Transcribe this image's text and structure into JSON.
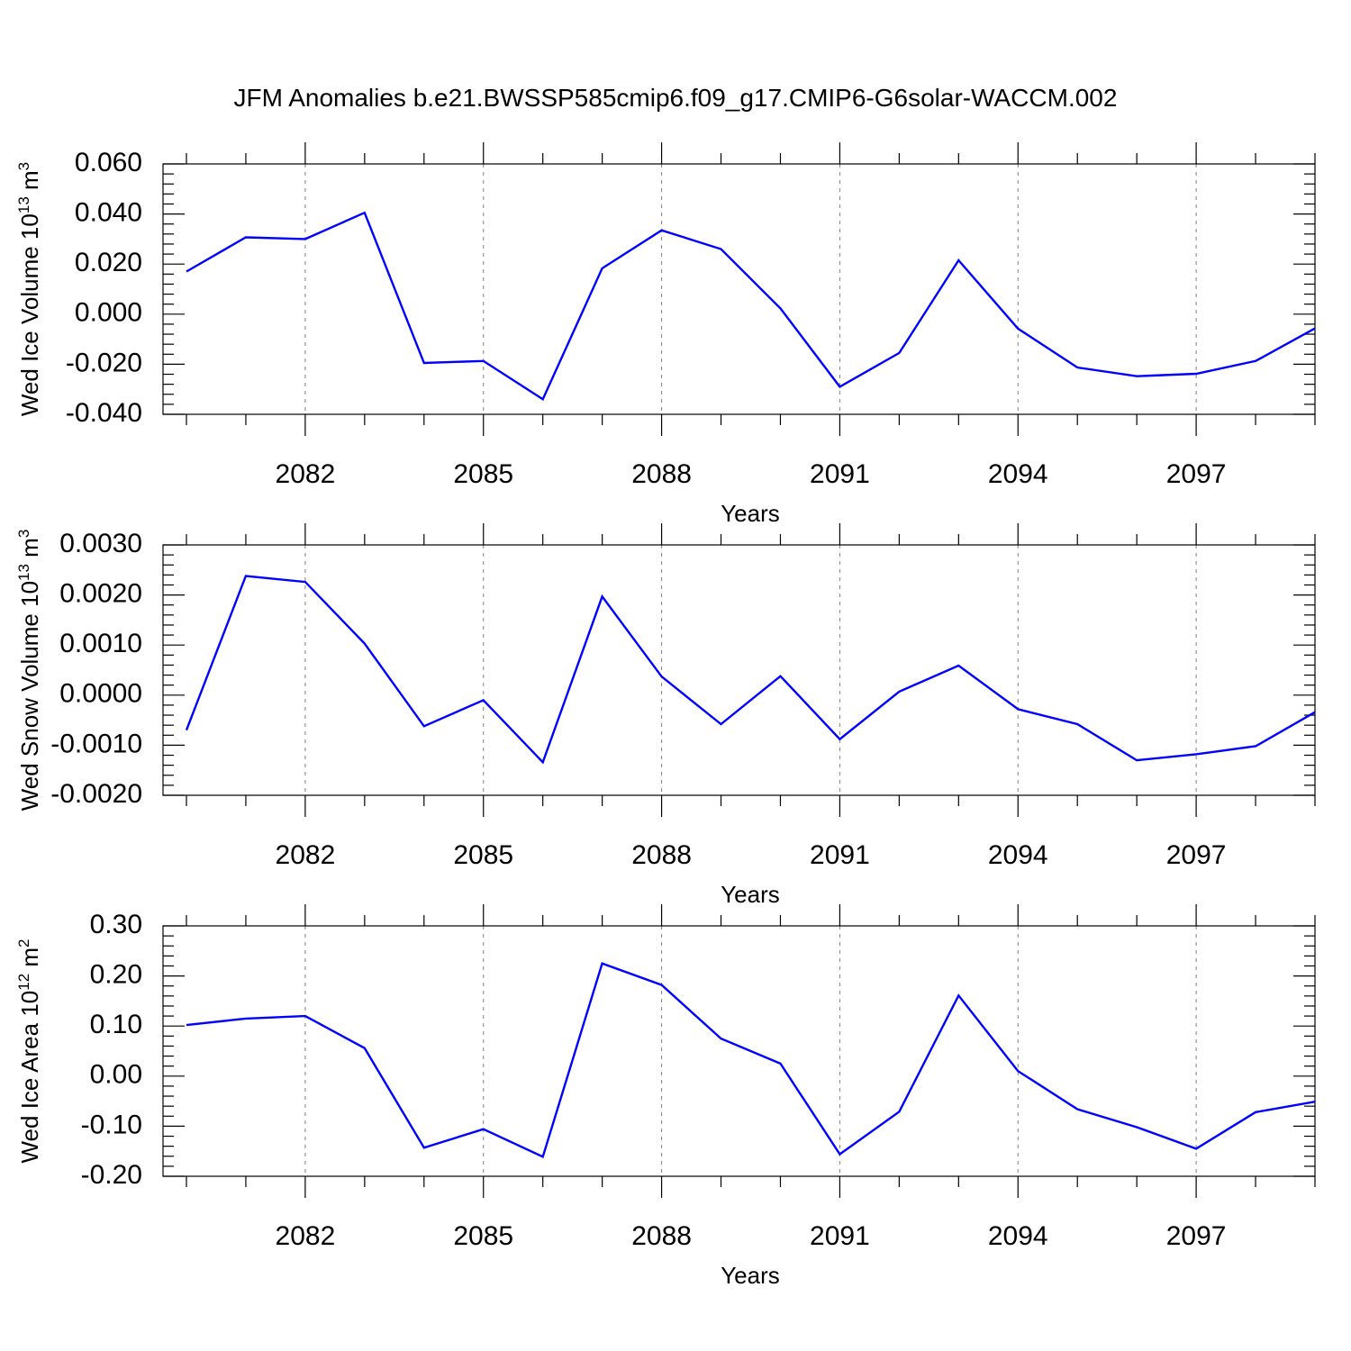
{
  "title": "JFM Anomalies b.e21.BWSSP585cmip6.f09_g17.CMIP6-G6solar-WACCM.002",
  "colors": {
    "line": "#0000ff",
    "axis": "#000000",
    "grid": "#808080"
  },
  "chart_data": [
    {
      "type": "line",
      "ylabel": {
        "main": "Wed Ice Volume 10",
        "sup": "13",
        "unit": " m",
        "unit_sup": "3"
      },
      "xlabel": "Years",
      "x": [
        2080,
        2081,
        2082,
        2083,
        2084,
        2085,
        2086,
        2087,
        2088,
        2089,
        2090,
        2091,
        2092,
        2093,
        2094,
        2095,
        2096,
        2097,
        2098,
        2099
      ],
      "values": [
        0.017,
        0.0307,
        0.03,
        0.0405,
        -0.0195,
        -0.0187,
        -0.034,
        0.0183,
        0.0335,
        0.026,
        0.0023,
        -0.029,
        -0.0155,
        0.0215,
        -0.0058,
        -0.0213,
        -0.0248,
        -0.0238,
        -0.0187,
        -0.0057
      ],
      "xlim": [
        2080,
        2099
      ],
      "ylim": [
        -0.04,
        0.06
      ],
      "yticks": [
        "0.060",
        "0.040",
        "0.020",
        "0.000",
        "-0.020",
        "-0.040"
      ],
      "xticks": [
        "2082",
        "2085",
        "2088",
        "2091",
        "2094",
        "2097"
      ],
      "grid": "vertical dashed at labeled years"
    },
    {
      "type": "line",
      "ylabel": {
        "main": "Wed Snow Volume 10",
        "sup": "13",
        "unit": " m",
        "unit_sup": "3"
      },
      "xlabel": "Years",
      "x": [
        2080,
        2081,
        2082,
        2083,
        2084,
        2085,
        2086,
        2087,
        2088,
        2089,
        2090,
        2091,
        2092,
        2093,
        2094,
        2095,
        2096,
        2097,
        2098,
        2099
      ],
      "values": [
        -0.0007,
        0.00238,
        0.00226,
        0.00103,
        -0.00062,
        -0.0001,
        -0.00134,
        0.00197,
        0.00037,
        -0.00058,
        0.00038,
        -0.00088,
        7e-05,
        0.00059,
        -0.00028,
        -0.00058,
        -0.0013,
        -0.00118,
        -0.00102,
        -0.00034
      ],
      "xlim": [
        2080,
        2099
      ],
      "ylim": [
        -0.002,
        0.003
      ],
      "yticks": [
        "0.0030",
        "0.0020",
        "0.0010",
        "0.0000",
        "-0.0010",
        "-0.0020"
      ],
      "xticks": [
        "2082",
        "2085",
        "2088",
        "2091",
        "2094",
        "2097"
      ],
      "grid": "vertical dashed at labeled years"
    },
    {
      "type": "line",
      "ylabel": {
        "main": "Wed Ice Area 10",
        "sup": "12",
        "unit": " m",
        "unit_sup": "2"
      },
      "xlabel": "Years",
      "x": [
        2080,
        2081,
        2082,
        2083,
        2084,
        2085,
        2086,
        2087,
        2088,
        2089,
        2090,
        2091,
        2092,
        2093,
        2094,
        2095,
        2096,
        2097,
        2098,
        2099
      ],
      "values": [
        0.102,
        0.115,
        0.12,
        0.056,
        -0.143,
        -0.106,
        -0.161,
        0.225,
        0.182,
        0.075,
        0.025,
        -0.156,
        -0.071,
        0.161,
        0.01,
        -0.066,
        -0.102,
        -0.145,
        -0.072,
        -0.051
      ],
      "xlim": [
        2080,
        2099
      ],
      "ylim": [
        -0.2,
        0.3
      ],
      "yticks": [
        "0.30",
        "0.20",
        "0.10",
        "0.00",
        "-0.10",
        "-0.20"
      ],
      "xticks": [
        "2082",
        "2085",
        "2088",
        "2091",
        "2094",
        "2097"
      ],
      "grid": "vertical dashed at labeled years"
    }
  ]
}
